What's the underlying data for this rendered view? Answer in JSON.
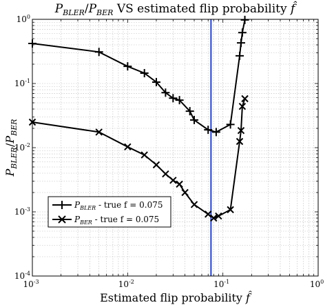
{
  "chart_data": {
    "type": "line",
    "title": "P_BLER/P_BER VS estimated flip probability f̂",
    "title_parts": {
      "p1": "P",
      "s1": "BLER",
      "slash": "/",
      "p2": "P",
      "s2": "BER",
      "rest": " VS estimated flip probability ",
      "fhat": "f̂"
    },
    "xlabel": "Estimated flip probability f̂",
    "xlabel_parts": {
      "text": "Estimated flip probability ",
      "fhat": "f̂"
    },
    "ylabel": "P_BLER/P_BER",
    "ylabel_parts": {
      "p1": "P",
      "s1": "BLER",
      "slash": "/",
      "p2": "P",
      "s2": "BER"
    },
    "x_scale": "log",
    "y_scale": "log",
    "xlim": [
      0.001,
      1
    ],
    "ylim": [
      0.0001,
      1
    ],
    "x_ticks": [
      {
        "value": 0.001,
        "base": "10",
        "exp": "-3"
      },
      {
        "value": 0.01,
        "base": "10",
        "exp": "-2"
      },
      {
        "value": 0.1,
        "base": "10",
        "exp": "-1"
      },
      {
        "value": 1,
        "base": "10",
        "exp": "0"
      }
    ],
    "y_ticks": [
      {
        "value": 0.0001,
        "base": "10",
        "exp": "-4"
      },
      {
        "value": 0.001,
        "base": "10",
        "exp": "-3"
      },
      {
        "value": 0.01,
        "base": "10",
        "exp": "-2"
      },
      {
        "value": 0.1,
        "base": "10",
        "exp": "-1"
      },
      {
        "value": 1,
        "base": "10",
        "exp": "0"
      }
    ],
    "grid": true,
    "vertical_line": {
      "x": 0.075,
      "color": "#1f3fe0"
    },
    "legend_position": "lower-left",
    "series": [
      {
        "name": "P_BLER - true f = 0.075",
        "legend_parts": {
          "p": "P",
          "sub": "BLER",
          "rest": " - true f = 0.075"
        },
        "marker": "plus",
        "color": "#000000",
        "x": [
          0.001,
          0.005,
          0.01,
          0.015,
          0.02,
          0.025,
          0.03,
          0.035,
          0.045,
          0.05,
          0.07,
          0.085,
          0.12,
          0.15,
          0.155,
          0.16,
          0.17
        ],
        "y": [
          0.42,
          0.31,
          0.185,
          0.145,
          0.105,
          0.072,
          0.059,
          0.055,
          0.037,
          0.027,
          0.019,
          0.0175,
          0.023,
          0.27,
          0.43,
          0.62,
          0.98
        ]
      },
      {
        "name": "P_BER - true f = 0.075",
        "legend_parts": {
          "p": "P",
          "sub": "BER",
          "rest": " - true f = 0.075"
        },
        "marker": "cross",
        "color": "#000000",
        "x": [
          0.001,
          0.005,
          0.01,
          0.015,
          0.02,
          0.025,
          0.03,
          0.035,
          0.04,
          0.05,
          0.07,
          0.08,
          0.09,
          0.12,
          0.15,
          0.155,
          0.16,
          0.17
        ],
        "y": [
          0.025,
          0.0175,
          0.0103,
          0.0077,
          0.0054,
          0.0039,
          0.0031,
          0.0027,
          0.002,
          0.0013,
          0.00092,
          0.0008,
          0.00086,
          0.00108,
          0.0125,
          0.0185,
          0.044,
          0.058
        ]
      }
    ]
  }
}
